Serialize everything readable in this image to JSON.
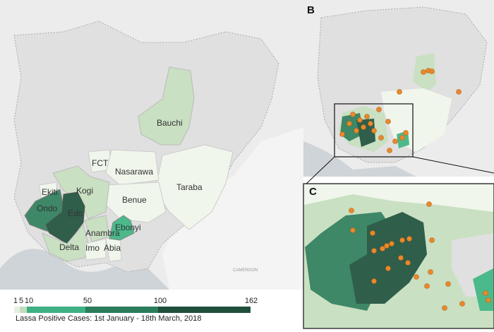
{
  "panels": {
    "b_label": "B",
    "c_label": "C"
  },
  "map_labels": {
    "cameroon": "CAMEROON"
  },
  "states": [
    {
      "name": "Bauchi",
      "color": "#c9e0c2"
    },
    {
      "name": "FCT",
      "color": "#f0f6ec"
    },
    {
      "name": "Nasarawa",
      "color": "#f0f6ec"
    },
    {
      "name": "Kogi",
      "color": "#c9e0c2"
    },
    {
      "name": "Ekiti",
      "color": "#f0f6ec"
    },
    {
      "name": "Benue",
      "color": "#f0f6ec"
    },
    {
      "name": "Taraba",
      "color": "#f0f6ec"
    },
    {
      "name": "Ondo",
      "color": "#3e8767"
    },
    {
      "name": "Edo",
      "color": "#2f5e4a"
    },
    {
      "name": "Ebonyi",
      "color": "#4cb98a"
    },
    {
      "name": "Anambra",
      "color": "#c9e0c2"
    },
    {
      "name": "Delta",
      "color": "#c9e0c2"
    },
    {
      "name": "Imo",
      "color": "#f0f6ec"
    },
    {
      "name": "Abia",
      "color": "#f0f6ec"
    }
  ],
  "legend": {
    "title": "Lassa Positive Cases: 1st January - 18th March, 2018",
    "ticks": [
      "1",
      "5",
      "10",
      "50",
      "100",
      "162"
    ],
    "colors": [
      "#e6f1e2",
      "#c3dcbd",
      "#3fb083",
      "#2b7d5c",
      "#1f4f3b"
    ]
  }
}
